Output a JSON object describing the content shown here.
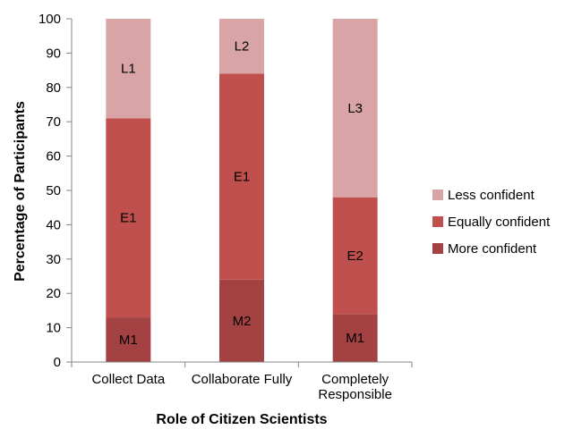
{
  "chart_data": {
    "type": "bar",
    "stacked": true,
    "title": "",
    "xlabel": "Role of Citizen Scientists",
    "ylabel": "Percentage of Participants",
    "ylim": [
      0,
      100
    ],
    "yticks": [
      0,
      10,
      20,
      30,
      40,
      50,
      60,
      70,
      80,
      90,
      100
    ],
    "categories": [
      [
        "Collect Data"
      ],
      [
        "Collaborate Fully"
      ],
      [
        "Completely",
        "Responsible"
      ]
    ],
    "series": [
      {
        "name": "More confident",
        "color": "#a34143",
        "values": [
          13,
          24,
          14
        ],
        "labels": [
          "M1",
          "M2",
          "M1"
        ]
      },
      {
        "name": "Equally confident",
        "color": "#c0504d",
        "values": [
          58,
          60,
          34
        ],
        "labels": [
          "E1",
          "E1",
          "E2"
        ]
      },
      {
        "name": "Less confident",
        "color": "#d9a4a5",
        "values": [
          29,
          16,
          52
        ],
        "labels": [
          "L1",
          "L2",
          "L3"
        ]
      }
    ],
    "legend_order": [
      "Less confident",
      "Equally confident",
      "More confident"
    ],
    "legend_position": "right"
  }
}
